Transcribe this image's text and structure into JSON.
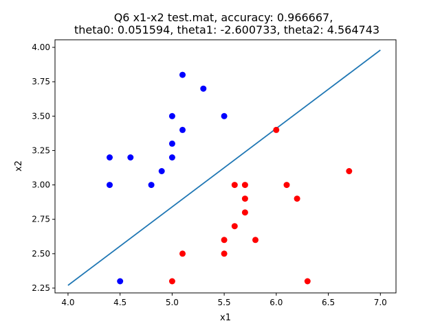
{
  "chart_data": {
    "type": "scatter",
    "title_line1": "Q6 x1-x2 test.mat, accuracy: 0.966667,",
    "title_line2": "theta0: 0.051594, theta1: -2.600733, theta2: 4.564743",
    "xlabel": "x1",
    "ylabel": "x2",
    "xlim": [
      3.875,
      7.15
    ],
    "ylim": [
      2.215,
      4.055
    ],
    "x_ticks": [
      4.0,
      4.5,
      5.0,
      5.5,
      6.0,
      6.5,
      7.0
    ],
    "x_tick_labels": [
      "4.0",
      "4.5",
      "5.0",
      "5.5",
      "6.0",
      "6.5",
      "7.0"
    ],
    "y_ticks": [
      2.25,
      2.5,
      2.75,
      3.0,
      3.25,
      3.5,
      3.75,
      4.0
    ],
    "y_tick_labels": [
      "2.25",
      "2.50",
      "2.75",
      "3.00",
      "3.25",
      "3.50",
      "3.75",
      "4.00"
    ],
    "grid": false,
    "colors": {
      "blue": "#0000ff",
      "red": "#ff0000",
      "line": "#1f77b4"
    },
    "series": [
      {
        "color": "blue",
        "points": [
          [
            5.1,
            3.8
          ],
          [
            5.3,
            3.7
          ],
          [
            5.0,
            3.5
          ],
          [
            5.5,
            3.5
          ],
          [
            5.1,
            3.4
          ],
          [
            5.0,
            3.3
          ],
          [
            4.4,
            3.2
          ],
          [
            4.6,
            3.2
          ],
          [
            5.0,
            3.2
          ],
          [
            4.9,
            3.1
          ],
          [
            4.4,
            3.0
          ],
          [
            4.8,
            3.0
          ],
          [
            4.5,
            2.3
          ]
        ]
      },
      {
        "color": "red",
        "points": [
          [
            6.0,
            3.4
          ],
          [
            6.7,
            3.1
          ],
          [
            5.6,
            3.0
          ],
          [
            5.7,
            3.0
          ],
          [
            6.1,
            3.0
          ],
          [
            5.7,
            2.9
          ],
          [
            6.2,
            2.9
          ],
          [
            5.7,
            2.8
          ],
          [
            5.6,
            2.7
          ],
          [
            5.5,
            2.6
          ],
          [
            5.8,
            2.6
          ],
          [
            5.1,
            2.5
          ],
          [
            5.5,
            2.5
          ],
          [
            5.0,
            2.3
          ],
          [
            6.3,
            2.3
          ]
        ]
      }
    ],
    "decision_line": [
      [
        4.0,
        2.27
      ],
      [
        7.0,
        3.98
      ]
    ]
  }
}
